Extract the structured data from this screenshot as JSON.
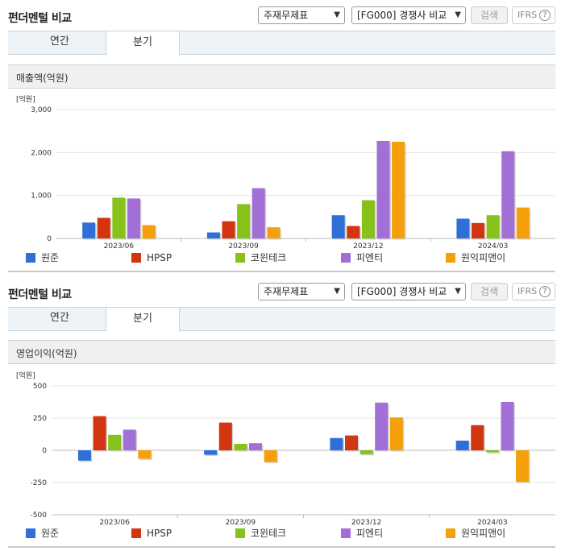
{
  "panels": [
    {
      "header": {
        "title": "펀더멘털 비교",
        "select_type": "주재무제표",
        "select_group": "[FG000] 경쟁사 비교",
        "search_label": "검색",
        "ifrs_label": "IFRS",
        "help_glyph": "?"
      },
      "tabs": [
        {
          "label": "연간",
          "active": false
        },
        {
          "label": "분기",
          "active": true
        }
      ],
      "section_title": "매출액(억원)",
      "chart_data": {
        "type": "bar",
        "title": "매출액(억원)",
        "unit_label": "[억원]",
        "categories": [
          "2023/06",
          "2023/09",
          "2023/12",
          "2024/03"
        ],
        "ylim": [
          0,
          3000
        ],
        "yticks": [
          0,
          1000,
          2000,
          3000
        ],
        "ytick_labels": [
          "0",
          "1,000",
          "2,000",
          "3,000"
        ],
        "series": [
          {
            "name": "원준",
            "color": "#2e6fd8",
            "values": [
              370,
              140,
              540,
              460
            ]
          },
          {
            "name": "HPSP",
            "color": "#d2350f",
            "values": [
              480,
              400,
              290,
              360
            ]
          },
          {
            "name": "코윈테크",
            "color": "#87c21a",
            "values": [
              950,
              800,
              890,
              540
            ]
          },
          {
            "name": "피엔티",
            "color": "#a26fd6",
            "values": [
              930,
              1170,
              2270,
              2030
            ]
          },
          {
            "name": "원익피앤이",
            "color": "#f5a00a",
            "values": [
              310,
              260,
              2250,
              720
            ]
          }
        ]
      }
    },
    {
      "header": {
        "title": "펀더멘털 비교",
        "select_type": "주재무제표",
        "select_group": "[FG000] 경쟁사 비교",
        "search_label": "검색",
        "ifrs_label": "IFRS",
        "help_glyph": "?"
      },
      "tabs": [
        {
          "label": "연간",
          "active": false
        },
        {
          "label": "분기",
          "active": true
        }
      ],
      "section_title": "영업이익(억원)",
      "chart_data": {
        "type": "bar",
        "title": "영업이익(억원)",
        "unit_label": "[억원]",
        "categories": [
          "2023/06",
          "2023/09",
          "2023/12",
          "2024/03"
        ],
        "ylim": [
          -500,
          500
        ],
        "yticks": [
          -500,
          -250,
          0,
          250,
          500
        ],
        "ytick_labels": [
          "-500",
          "-250",
          "0",
          "250",
          "500"
        ],
        "series": [
          {
            "name": "원준",
            "color": "#2e6fd8",
            "values": [
              -80,
              -35,
              95,
              75
            ]
          },
          {
            "name": "HPSP",
            "color": "#d2350f",
            "values": [
              265,
              215,
              115,
              195
            ]
          },
          {
            "name": "코윈테크",
            "color": "#87c21a",
            "values": [
              120,
              50,
              -30,
              -15
            ]
          },
          {
            "name": "피엔티",
            "color": "#a26fd6",
            "values": [
              160,
              55,
              370,
              375
            ]
          },
          {
            "name": "원익피앤이",
            "color": "#f5a00a",
            "values": [
              -65,
              -90,
              255,
              -245
            ]
          }
        ]
      }
    }
  ]
}
